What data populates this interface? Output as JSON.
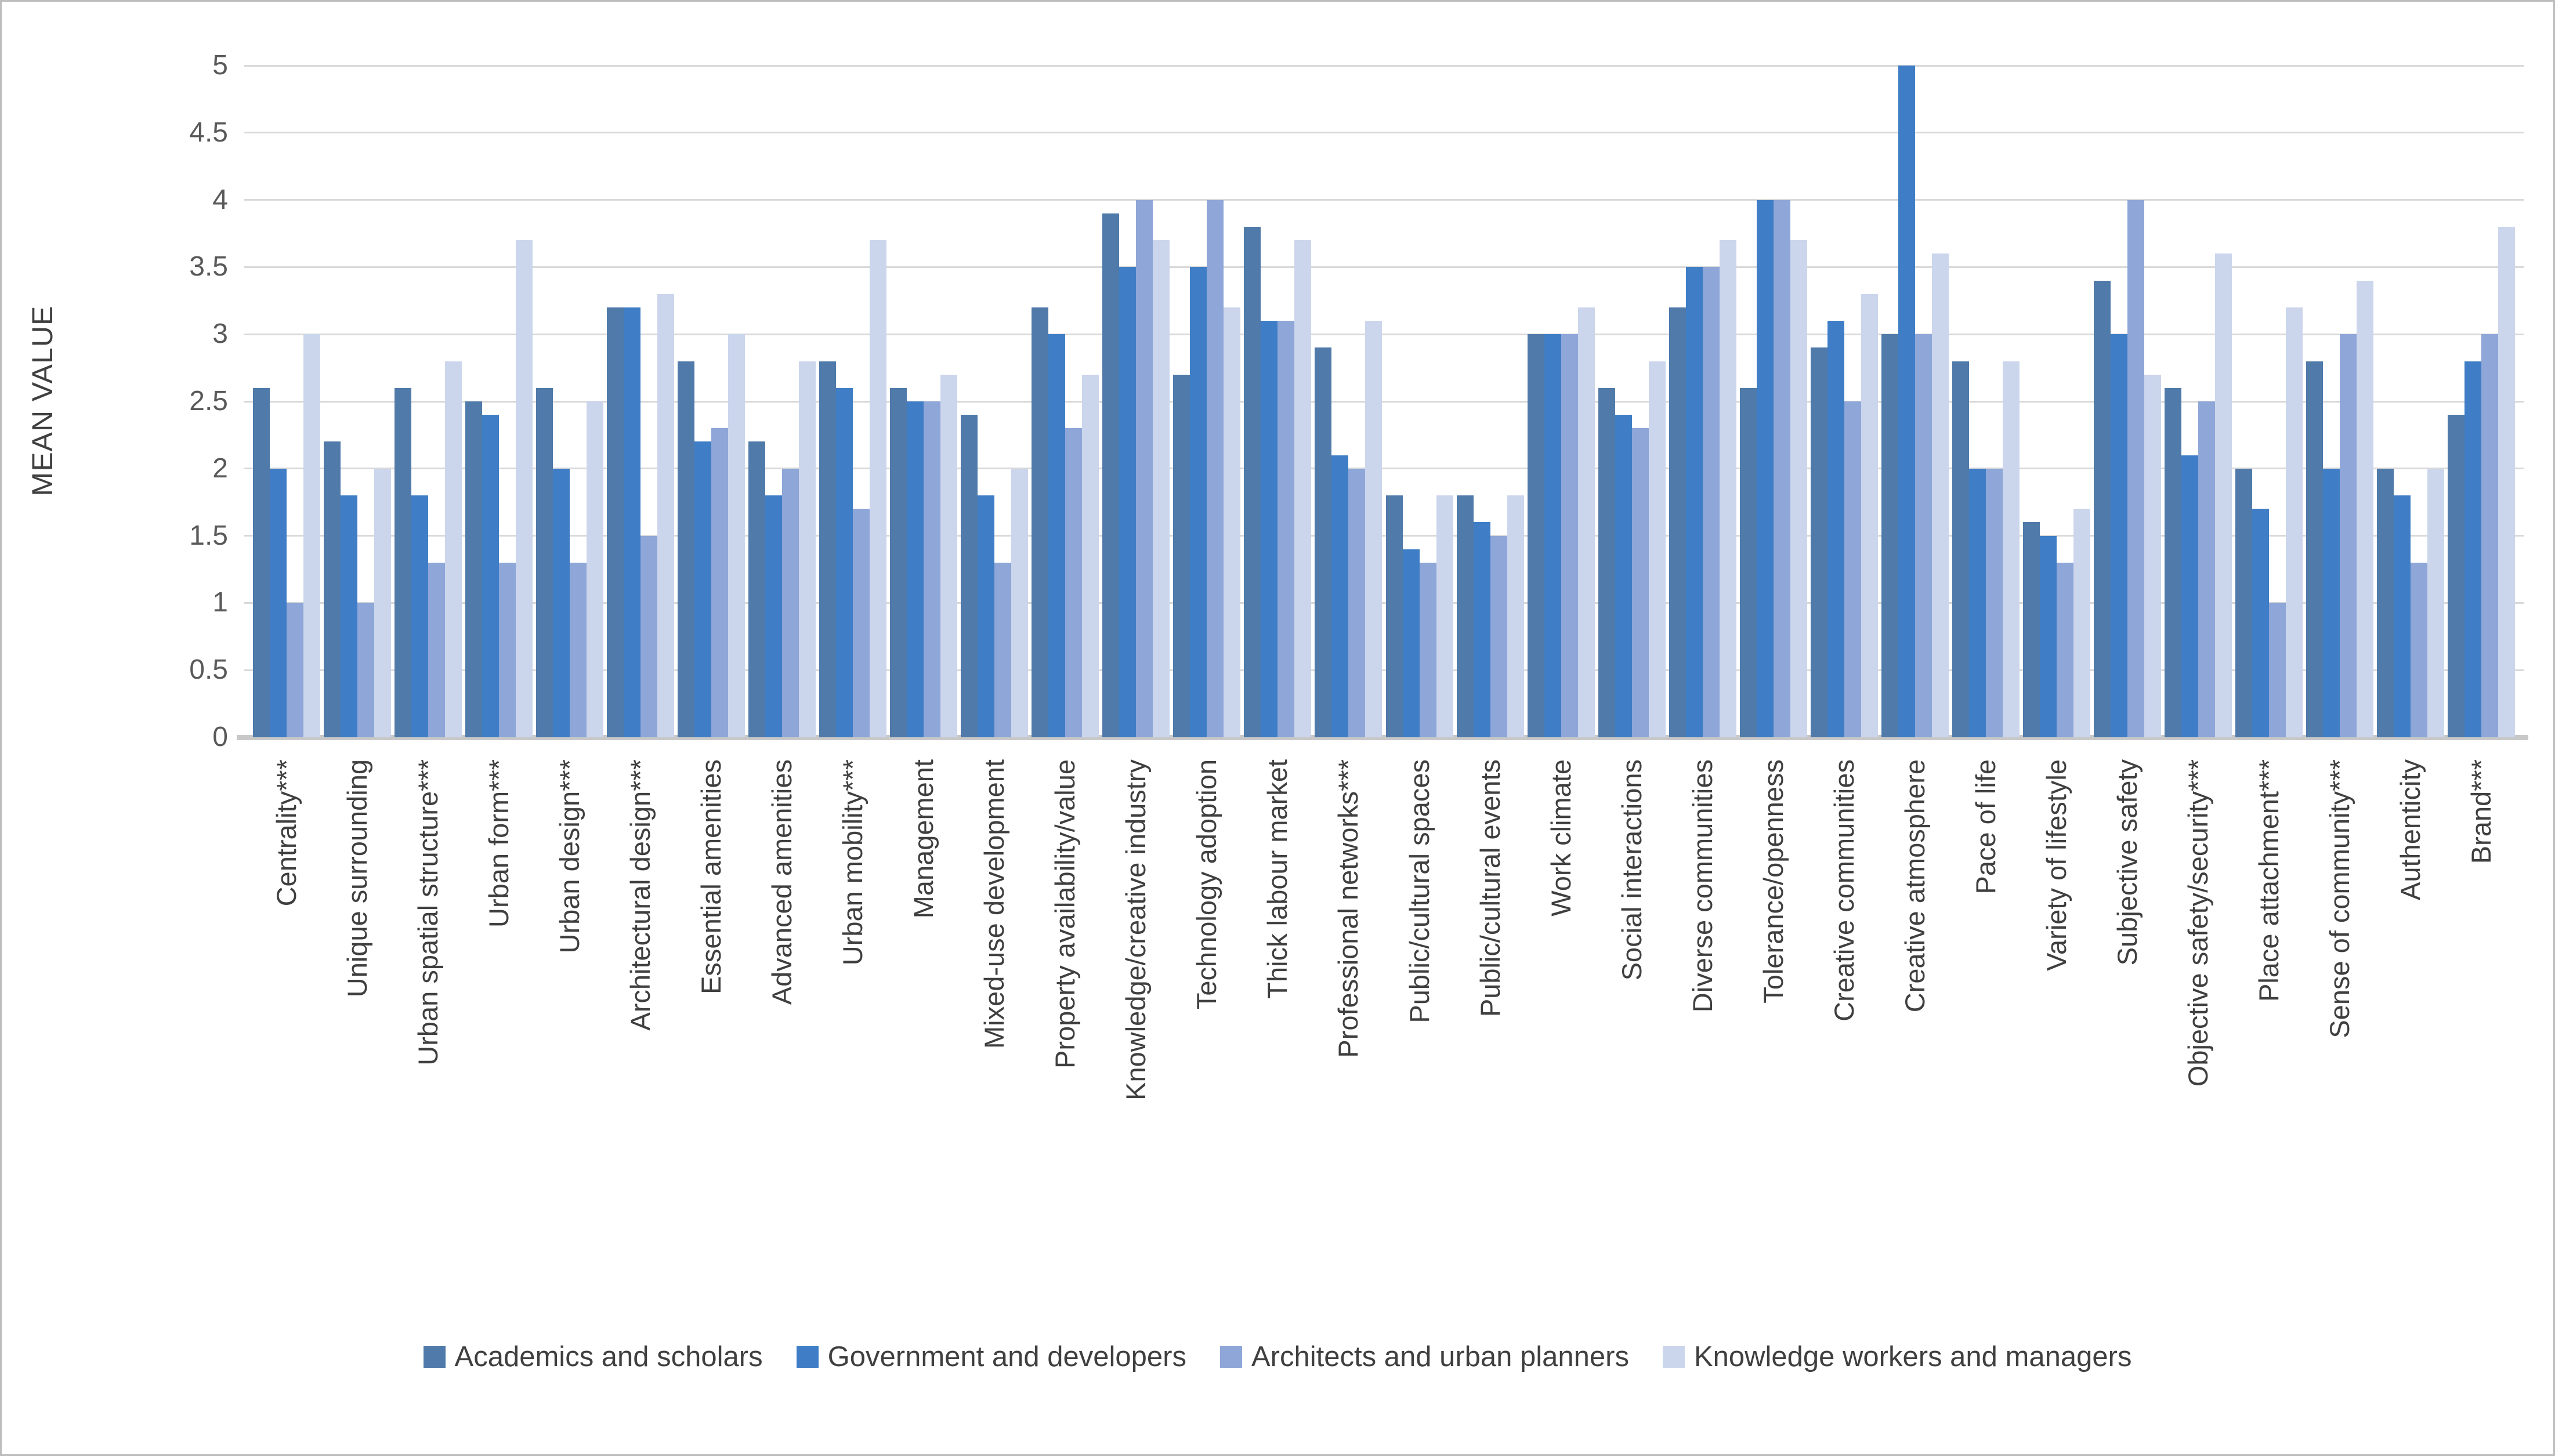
{
  "chart_data": {
    "type": "bar",
    "title": "",
    "xlabel": "",
    "ylabel": "MEAN VALUE",
    "ylim": [
      0,
      5
    ],
    "ytick_step": 0.5,
    "yticks": [
      "0",
      "0.5",
      "1",
      "1.5",
      "2",
      "2.5",
      "3",
      "3.5",
      "4",
      "4.5",
      "5"
    ],
    "grid": true,
    "legend_position": "bottom",
    "categories": [
      "Centrality***",
      "Unique surrounding",
      "Urban spatial structure***",
      "Urban form***",
      "Urban design***",
      "Architectural design***",
      "Essential amenities",
      "Advanced amenities",
      "Urban mobility***",
      "Management",
      "Mixed-use development",
      "Property availability/value",
      "Knowledge/creative industry",
      "Technology adoption",
      "Thick labour market",
      "Professional networks***",
      "Public/cultural spaces",
      "Public/cultural events",
      "Work climate",
      "Social interactions",
      "Diverse communities",
      "Tolerance/openness",
      "Creative communities",
      "Creative atmosphere",
      "Pace of life",
      "Variety of lifestyle",
      "Subjective safety",
      "Objective safety/security***",
      "Place attachment***",
      "Sense of community***",
      "Authenticity",
      "Brand***"
    ],
    "series": [
      {
        "name": "Academics and scholars",
        "color": "#4f7aa9",
        "values": [
          2.6,
          2.2,
          2.6,
          2.5,
          2.6,
          3.2,
          2.8,
          2.2,
          2.8,
          2.6,
          2.4,
          3.2,
          3.9,
          2.7,
          3.8,
          2.9,
          1.8,
          1.8,
          3.0,
          2.6,
          3.2,
          2.6,
          2.9,
          3.0,
          2.8,
          1.6,
          3.4,
          2.6,
          2.0,
          2.8,
          2.0,
          2.4
        ]
      },
      {
        "name": "Government and developers",
        "color": "#3f7ec6",
        "values": [
          2.0,
          1.8,
          1.8,
          2.4,
          2.0,
          3.2,
          2.2,
          1.8,
          2.6,
          2.5,
          1.8,
          3.0,
          3.5,
          3.5,
          3.1,
          2.1,
          1.4,
          1.6,
          3.0,
          2.4,
          3.5,
          4.0,
          3.1,
          5.0,
          2.0,
          1.5,
          3.0,
          2.1,
          1.7,
          2.0,
          1.8,
          2.8
        ]
      },
      {
        "name": "Architects and urban planners",
        "color": "#8ea6d8",
        "values": [
          1.0,
          1.0,
          1.3,
          1.3,
          1.3,
          1.5,
          2.3,
          2.0,
          1.7,
          2.5,
          1.3,
          2.3,
          4.0,
          4.0,
          3.1,
          2.0,
          1.3,
          1.5,
          3.0,
          2.3,
          3.5,
          4.0,
          2.5,
          3.0,
          2.0,
          1.3,
          4.0,
          2.5,
          1.0,
          3.0,
          1.3,
          3.0
        ]
      },
      {
        "name": "Knowledge workers and managers",
        "color": "#cbd6ec",
        "values": [
          3.0,
          2.0,
          2.8,
          3.7,
          2.5,
          3.3,
          3.0,
          2.8,
          3.7,
          2.7,
          2.0,
          2.7,
          3.7,
          3.2,
          3.7,
          3.1,
          1.8,
          1.8,
          3.2,
          2.8,
          3.7,
          3.7,
          3.3,
          3.6,
          2.8,
          1.7,
          2.7,
          3.6,
          3.2,
          3.4,
          2.0,
          3.8
        ]
      }
    ]
  },
  "style_colors": {
    "gridline": "#d9d9d9",
    "baseline": "#c8c8c8",
    "tick_text": "#595959",
    "label_text": "#3f3f3f",
    "frame_border": "#bdbdbd",
    "background": "#ffffff"
  }
}
